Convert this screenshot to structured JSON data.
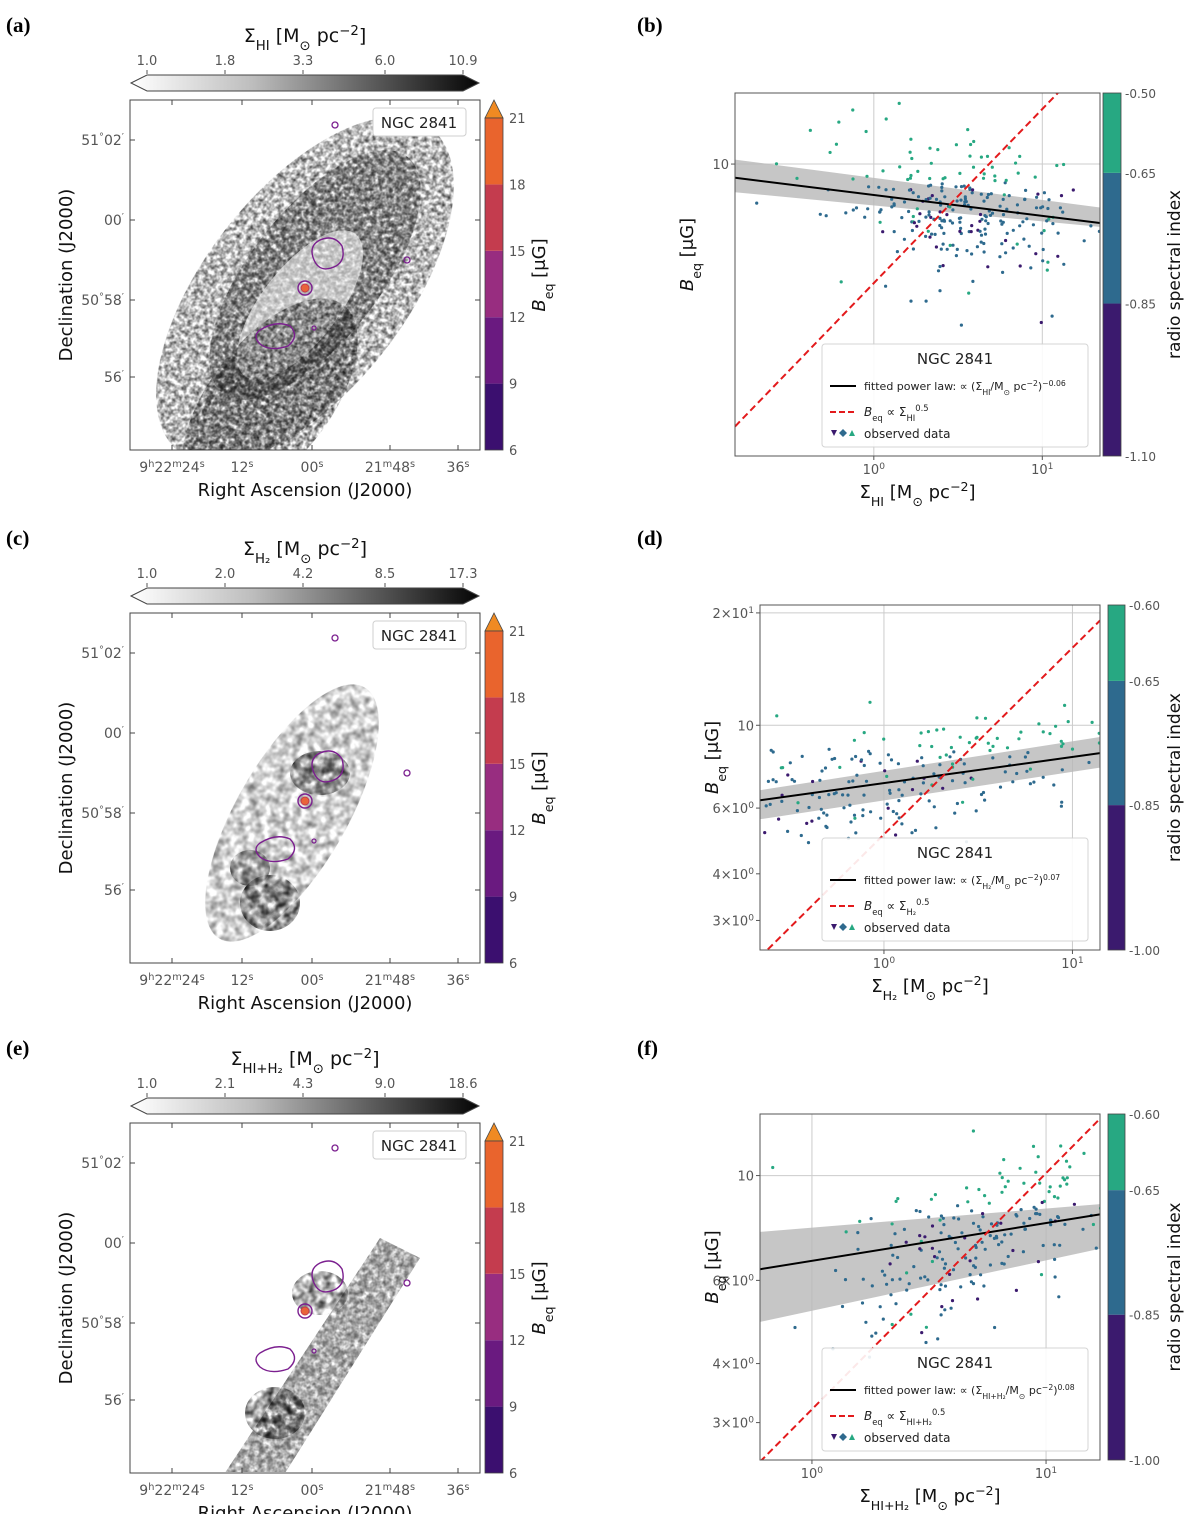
{
  "colors": {
    "bcolor": [
      "#3b0f6f",
      "#6a1a80",
      "#982d80",
      "#c43c4e",
      "#e9642d",
      "#f08a22"
    ],
    "spec_low": "#3b1a6e",
    "spec_mid": "#2e6a8e",
    "spec_high": "#27a882",
    "fit": "#000000",
    "equip": "#e31a1c",
    "band": "#b8b8b8"
  },
  "map_common": {
    "galaxy_label": "NGC 2841",
    "ra_label": "Right Ascension (J2000)",
    "dec_label": "Declination (J2000)",
    "ra_ticks": [
      {
        "h": "9",
        "m": "22",
        "s": "24",
        "full": true
      },
      {
        "s": "12"
      },
      {
        "s": "00"
      },
      {
        "m": "21",
        "s": "48",
        "short": true
      },
      {
        "s": "36"
      }
    ],
    "dec_ticks": [
      {
        "deg": "51",
        "min": "02"
      },
      {
        "min": "00"
      },
      {
        "deg": "50",
        "min": "58"
      },
      {
        "min": "56"
      }
    ],
    "beq_label": "B",
    "beq_sub": "eq",
    "beq_unit": "[μG]",
    "beq_ticks": [
      "6",
      "9",
      "12",
      "15",
      "18",
      "21"
    ]
  },
  "panels": {
    "a": {
      "letter": "(a)",
      "title_sym": "Σ",
      "title_sub": "HI",
      "title_unit": "[M",
      "title_unit2": "pc",
      "title_exp": "−2",
      "title_close": "]",
      "ticks": [
        "1.0",
        "1.8",
        "3.3",
        "6.0",
        "10.9"
      ]
    },
    "c": {
      "letter": "(c)",
      "title_sym": "Σ",
      "title_sub": "H₂",
      "title_unit": "[M",
      "title_unit2": "pc",
      "title_exp": "−2",
      "title_close": "]",
      "ticks": [
        "1.0",
        "2.0",
        "4.2",
        "8.5",
        "17.3"
      ]
    },
    "e": {
      "letter": "(e)",
      "title_sym": "Σ",
      "title_sub": "HI+H₂",
      "title_unit": "[M",
      "title_unit2": "pc",
      "title_exp": "−2",
      "title_close": "]",
      "ticks": [
        "1.0",
        "2.1",
        "4.3",
        "9.0",
        "18.6"
      ]
    }
  },
  "chart_data": [
    {
      "id": "b",
      "letter": "(b)",
      "type": "scatter",
      "xlabel_sym": "Σ",
      "xlabel_sub": "HI",
      "xlabel_unit": "[M",
      "xlabel_unit2": "pc",
      "xlabel_exp": "−2",
      "xlabel_close": "]",
      "ylabel": "B",
      "ylabel_sub": "eq",
      "ylabel_unit": "[μG]",
      "x_scale": "log",
      "y_scale": "log",
      "xlim": [
        0.15,
        22
      ],
      "ylim": [
        1.45,
        16
      ],
      "x_ticks": [
        {
          "v": 1,
          "base": "10",
          "exp": "0"
        },
        {
          "v": 10,
          "base": "10",
          "exp": "1"
        }
      ],
      "y_ticks": [
        {
          "v": 10,
          "label": "10"
        }
      ],
      "cbar_label": "radio spectral index",
      "cbar_ticks": [
        "-0.50",
        "-0.65",
        "-0.85",
        "-1.10"
      ],
      "legend_title": "NGC 2841",
      "legend_fit": "fitted power law: ∝",
      "legend_fit_exp": "−0.06",
      "legend_frac_num": "Σ",
      "legend_frac_num_sub": "HI",
      "legend_frac_den": "M",
      "legend_frac_den2": "pc",
      "legend_frac_den_exp": "−2",
      "legend_eq": "B",
      "legend_eq_sub": "eq",
      "legend_eq_prop": "∝ Σ",
      "legend_eq_sub2": "HI",
      "legend_eq_exp": "0.5",
      "legend_obs": "observed data",
      "fit": {
        "slope": -0.06,
        "x0": 1,
        "y0": 8.15
      },
      "band": {
        "lower_at_xmin": 8.3,
        "upper_at_xmin": 10.3,
        "lower_at_xmax": 6.6,
        "upper_at_xmax": 7.5
      },
      "equip": {
        "c": 4.55
      },
      "cluster": {
        "xc": 3.2,
        "xspread": 0.38,
        "yc": 7.3,
        "yspread": 0.09,
        "n": 260,
        "slope": -0.06
      },
      "outliers": [
        [
          0.42,
          12.5
        ],
        [
          0.62,
          13.2
        ],
        [
          0.75,
          14.3
        ],
        [
          0.9,
          12.4
        ],
        [
          0.6,
          11.4
        ],
        [
          0.55,
          10.8
        ],
        [
          0.35,
          9.1
        ]
      ]
    },
    {
      "id": "d",
      "letter": "(d)",
      "type": "scatter",
      "xlabel_sym": "Σ",
      "xlabel_sub": "H₂",
      "xlabel_unit": "[M",
      "xlabel_unit2": "pc",
      "xlabel_exp": "−2",
      "xlabel_close": "]",
      "ylabel": "B",
      "ylabel_sub": "eq",
      "ylabel_unit": "[μG]",
      "x_scale": "log",
      "y_scale": "log",
      "xlim": [
        0.22,
        14
      ],
      "ylim": [
        2.5,
        21
      ],
      "x_ticks": [
        {
          "v": 1,
          "base": "10",
          "exp": "0"
        },
        {
          "v": 10,
          "base": "10",
          "exp": "1"
        }
      ],
      "y_ticks": [
        {
          "v": 3,
          "label": "3×10",
          "exp": "0"
        },
        {
          "v": 4,
          "label": "4×10",
          "exp": "0"
        },
        {
          "v": 6,
          "label": "6×10",
          "exp": "0"
        },
        {
          "v": 10,
          "label": "10"
        },
        {
          "v": 20,
          "label": "2×10",
          "exp": "1"
        }
      ],
      "cbar_label": "radio spectral index",
      "cbar_ticks": [
        "-0.60",
        "-0.65",
        "-0.85",
        "-1.00"
      ],
      "legend_title": "NGC 2841",
      "legend_fit": "fitted power law: ∝",
      "legend_fit_exp": "0.07",
      "legend_frac_num": "Σ",
      "legend_frac_num_sub": "H₂",
      "legend_frac_den": "M",
      "legend_frac_den2": "pc",
      "legend_frac_den_exp": "−2",
      "legend_eq": "B",
      "legend_eq_sub": "eq",
      "legend_eq_prop": "∝ Σ",
      "legend_eq_sub2": "H₂",
      "legend_eq_exp": "0.5",
      "legend_obs": "observed data",
      "fit": {
        "slope": 0.07,
        "x0": 1,
        "y0": 7.0
      },
      "band": {
        "lower_at_xmin": 5.6,
        "upper_at_xmin": 6.7,
        "lower_at_xmax": 7.7,
        "upper_at_xmax": 9.3
      },
      "equip": {
        "c": 5.1
      },
      "cluster": {
        "xc": 1.4,
        "xspread": 0.55,
        "yc": 7.1,
        "yspread": 0.07,
        "n": 200,
        "slope": 0.07
      },
      "outliers": [
        [
          0.27,
          10.6
        ],
        [
          0.29,
          7.7
        ],
        [
          0.35,
          6.2
        ],
        [
          7.0,
          9.6
        ],
        [
          7.6,
          9.5
        ],
        [
          5.2,
          9.2
        ]
      ]
    },
    {
      "id": "f",
      "letter": "(f)",
      "type": "scatter",
      "xlabel_sym": "Σ",
      "xlabel_sub": "HI+H₂",
      "xlabel_unit": "[M",
      "xlabel_unit2": "pc",
      "xlabel_exp": "−2",
      "xlabel_close": "]",
      "ylabel": "B",
      "ylabel_sub": "eq",
      "ylabel_unit": "[μG]",
      "x_scale": "log",
      "y_scale": "log",
      "xlim": [
        0.6,
        17
      ],
      "ylim": [
        2.5,
        13.5
      ],
      "x_ticks": [
        {
          "v": 1,
          "base": "10",
          "exp": "0"
        },
        {
          "v": 10,
          "base": "10",
          "exp": "1"
        }
      ],
      "y_ticks": [
        {
          "v": 3,
          "label": "3×10",
          "exp": "0"
        },
        {
          "v": 4,
          "label": "4×10",
          "exp": "0"
        },
        {
          "v": 6,
          "label": "6×10",
          "exp": "0"
        },
        {
          "v": 10,
          "label": "10"
        }
      ],
      "cbar_label": "radio spectral index",
      "cbar_ticks": [
        "-0.60",
        "-0.65",
        "-0.85",
        "-1.00"
      ],
      "legend_title": "NGC 2841",
      "legend_fit": "fitted power law: ∝",
      "legend_fit_exp": "0.08",
      "legend_frac_num": "Σ",
      "legend_frac_num_sub": "HI+H₂",
      "legend_frac_den": "M",
      "legend_frac_den2": "pc",
      "legend_frac_den_exp": "−2",
      "legend_eq": "B",
      "legend_eq_sub": "eq",
      "legend_eq_prop": "∝ Σ",
      "legend_eq_sub2": "HI+H₂",
      "legend_eq_exp": "0.5",
      "legend_obs": "observed data",
      "fit": {
        "slope": 0.08,
        "x0": 1,
        "y0": 6.6
      },
      "band": {
        "lower_at_xmin": 4.9,
        "upper_at_xmin": 7.6,
        "lower_at_xmax": 7.0,
        "upper_at_xmax": 8.7
      },
      "equip": {
        "c": 3.2
      },
      "cluster": {
        "xc": 5.0,
        "xspread": 0.3,
        "yc": 7.2,
        "yspread": 0.08,
        "n": 200,
        "slope": 0.2
      },
      "outliers": [
        [
          0.68,
          10.4
        ],
        [
          1.6,
          8.0
        ],
        [
          2.2,
          7.9
        ],
        [
          1.4,
          7.6
        ],
        [
          12,
          9.8
        ],
        [
          11.5,
          9.5
        ],
        [
          6.5,
          9.9
        ]
      ]
    }
  ]
}
